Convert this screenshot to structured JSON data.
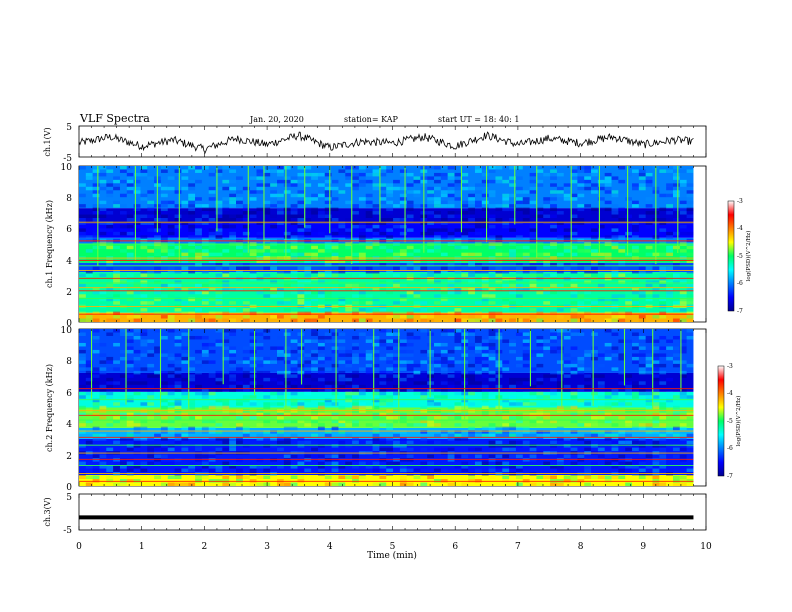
{
  "header": {
    "title": "VLF Spectra",
    "date": "Jan. 20, 2020",
    "station": "station= KAP",
    "start": "start  UT =   18: 40: 1"
  },
  "chart_data": [
    {
      "id": "ch1-waveform",
      "type": "line",
      "ylabel": "ch.1(V)",
      "yticks": [
        "5",
        "-5"
      ],
      "ylim": [
        -5,
        5
      ],
      "xlim": [
        0,
        10
      ],
      "data_xlim": [
        0,
        9.8
      ],
      "note_values": "noisy trace oscillating roughly between -3 and 3 V",
      "x": [
        0,
        0.5,
        1,
        1.5,
        2,
        2.5,
        3,
        3.5,
        4,
        4.5,
        5,
        5.5,
        6,
        6.5,
        7,
        7.5,
        8,
        8.5,
        9,
        9.5,
        9.8
      ],
      "y": [
        -0.5,
        1.5,
        -1.5,
        0.5,
        -2.5,
        1,
        -1,
        2,
        -2,
        0,
        -0.5,
        1.5,
        -1.5,
        2,
        -1,
        1,
        -0.5,
        1.5,
        -1,
        0.5,
        0
      ]
    },
    {
      "id": "ch1-spectrogram",
      "type": "heatmap",
      "ylabel": "ch.1 Frequency (kHz)",
      "ylim": [
        0,
        10
      ],
      "yticks": [
        "0",
        "2",
        "4",
        "6",
        "8",
        "10"
      ],
      "xlim": [
        0,
        10
      ],
      "data_xlim": [
        0,
        9.8
      ],
      "colorbar": {
        "label": "log(PSD)(V^2/Hz)",
        "range": [
          -7,
          -3
        ],
        "ticks": [
          "-3",
          "-4",
          "-5",
          "-6",
          "-7"
        ]
      },
      "bands": [
        {
          "from": 0,
          "to": 0.6,
          "value": -4.2
        },
        {
          "from": 0.6,
          "to": 3.2,
          "value": -5.2
        },
        {
          "from": 3.2,
          "to": 3.8,
          "value": -6.2
        },
        {
          "from": 3.8,
          "to": 5.0,
          "value": -5.0
        },
        {
          "from": 5.0,
          "to": 5.4,
          "value": -6.0
        },
        {
          "from": 5.4,
          "to": 6.3,
          "value": -6.5
        },
        {
          "from": 6.3,
          "to": 7.3,
          "value": -6.7
        },
        {
          "from": 7.3,
          "to": 10,
          "value": -6.0
        }
      ],
      "lines_khz": [
        0.5,
        1.0,
        1.5,
        2.0,
        2.2,
        2.5,
        2.8,
        3.3,
        3.6,
        3.95,
        4.1,
        5.0,
        5.2,
        6.4
      ],
      "spikes_min": [
        0.3,
        0.9,
        1.25,
        1.6,
        2.2,
        2.7,
        2.95,
        3.3,
        3.6,
        4.0,
        4.35,
        4.8,
        5.2,
        5.5,
        6.1,
        6.5,
        6.95,
        7.3,
        7.85,
        8.3,
        8.75,
        9.2,
        9.55
      ]
    },
    {
      "id": "ch2-spectrogram",
      "type": "heatmap",
      "ylabel": "ch.2 Frequency (kHz)",
      "ylim": [
        0,
        10
      ],
      "yticks": [
        "0",
        "2",
        "4",
        "6",
        "8",
        "10"
      ],
      "xlim": [
        0,
        10
      ],
      "data_xlim": [
        0,
        9.8
      ],
      "colorbar": {
        "label": "log(PSD)(V^2/Hz)",
        "range": [
          -7,
          -3
        ],
        "ticks": [
          "-3",
          "-4",
          "-5",
          "-6",
          "-7"
        ]
      },
      "bands": [
        {
          "from": 0,
          "to": 0.7,
          "value": -4.5
        },
        {
          "from": 0.7,
          "to": 3.0,
          "value": -6.4
        },
        {
          "from": 3.0,
          "to": 3.7,
          "value": -5.8
        },
        {
          "from": 3.7,
          "to": 5.0,
          "value": -4.8
        },
        {
          "from": 5.0,
          "to": 6.0,
          "value": -5.4
        },
        {
          "from": 6.0,
          "to": 7.2,
          "value": -6.7
        },
        {
          "from": 7.2,
          "to": 10,
          "value": -6.2
        }
      ],
      "lines_khz": [
        0.3,
        0.8,
        1.3,
        1.7,
        2.1,
        2.6,
        3.1,
        3.5,
        4.2,
        4.5,
        4.8,
        5.5,
        6.2
      ],
      "spikes_min": [
        0.2,
        0.75,
        1.3,
        1.75,
        2.3,
        2.8,
        3.3,
        3.55,
        4.1,
        4.7,
        5.1,
        5.6,
        6.15,
        6.7,
        7.2,
        7.7,
        8.2,
        8.7,
        9.15,
        9.6
      ]
    },
    {
      "id": "ch3-waveform",
      "type": "line",
      "ylabel": "ch.3(V)",
      "yticks": [
        "5",
        "-5"
      ],
      "ylim": [
        -5,
        5
      ],
      "xlim": [
        0,
        10
      ],
      "xlabel": "Time (min)",
      "xticks": [
        "0",
        "1",
        "2",
        "3",
        "4",
        "5",
        "6",
        "7",
        "8",
        "9",
        "10"
      ],
      "data_xlim": [
        0,
        9.8
      ],
      "x": [
        0,
        9.8
      ],
      "y": [
        -1.5,
        -1.5
      ]
    }
  ]
}
